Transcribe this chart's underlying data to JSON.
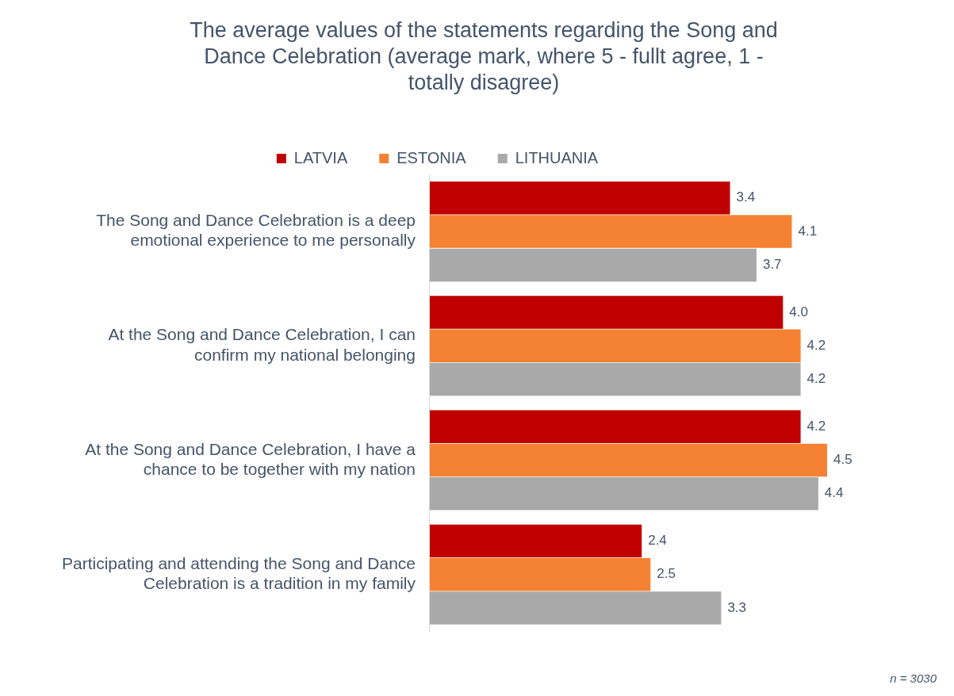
{
  "chart_data": {
    "type": "bar",
    "orientation": "horizontal",
    "title": "The average values of the statements regarding the Song and Dance Celebration (average mark, where 5 - fullt agree, 1 - totally disagree)",
    "categories": [
      "The Song and Dance Celebration is a deep emotional experience to me personally",
      "At the Song and Dance Celebration, I can confirm my national belonging",
      "At the Song and Dance Celebration, I have a chance to be together with my nation",
      "Participating and attending the Song and Dance Celebration is a tradition in my family"
    ],
    "series": [
      {
        "name": "LATVIA",
        "color": "#c00000",
        "values": [
          3.4,
          4.0,
          4.2,
          2.4
        ],
        "value_labels": [
          "3.4",
          "4.0",
          "4.2",
          "2.4"
        ]
      },
      {
        "name": "ESTONIA",
        "color": "#f58232",
        "values": [
          4.1,
          4.2,
          4.5,
          2.5
        ],
        "value_labels": [
          "4.1",
          "4.2",
          "4.5",
          "2.5"
        ]
      },
      {
        "name": "LITHUANIA",
        "color": "#a9a9a9",
        "values": [
          3.7,
          4.2,
          4.4,
          3.3
        ],
        "value_labels": [
          "3.7",
          "4.2",
          "4.4",
          "3.3"
        ]
      }
    ],
    "legend": "top",
    "grid": false,
    "tick_labels": "y",
    "annotations": [
      "n = 3030"
    ]
  }
}
